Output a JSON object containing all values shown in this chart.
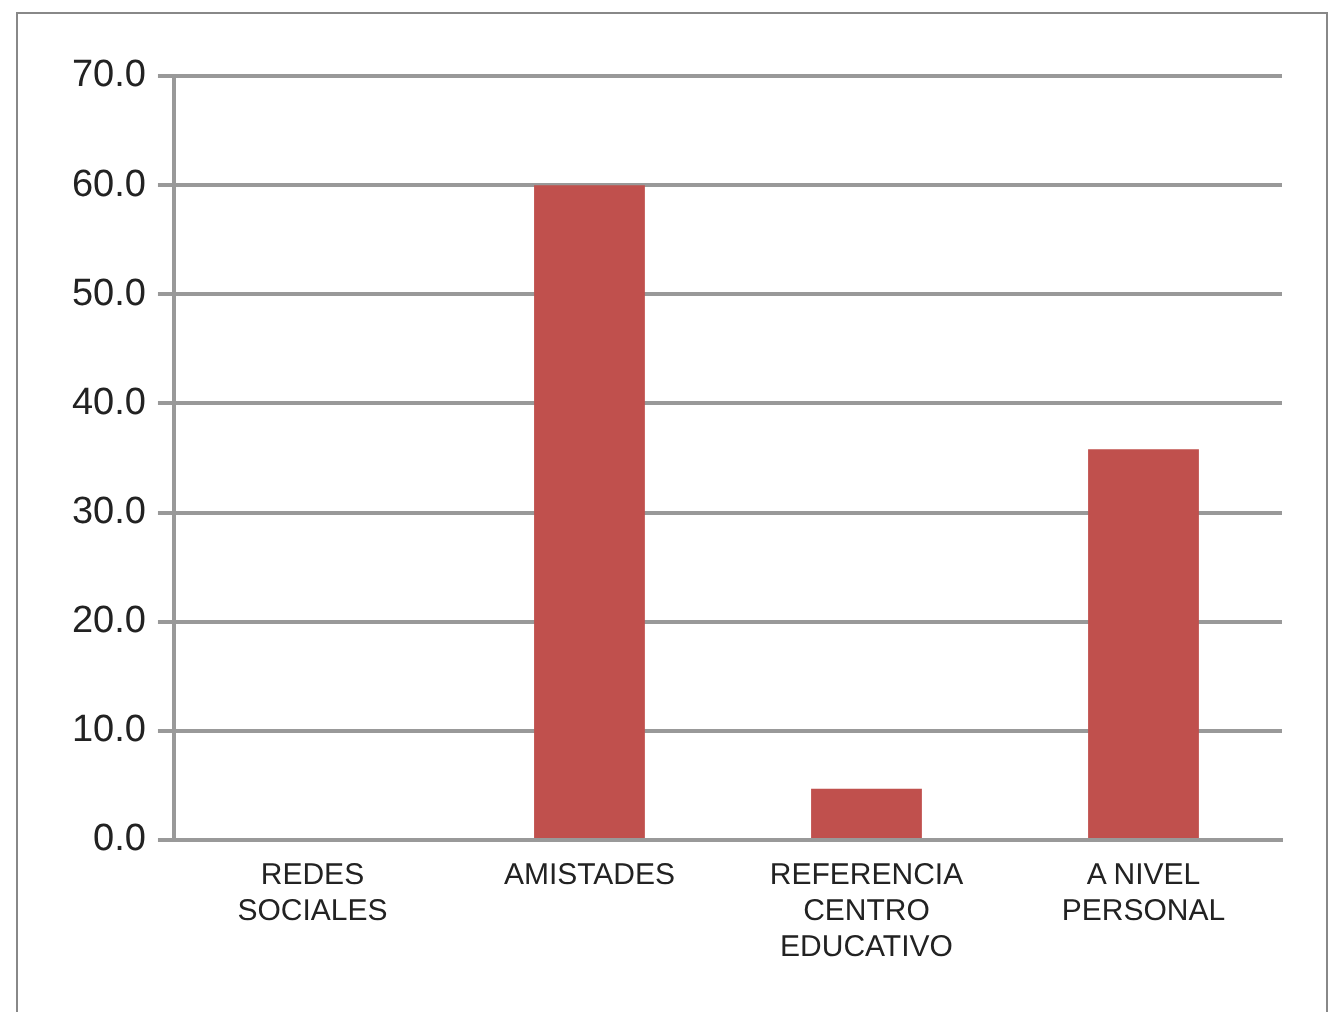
{
  "chart_data": {
    "type": "bar",
    "categories": [
      "REDES SOCIALES",
      "AMISTADES",
      "REFERENCIA CENTRO EDUCATIVO",
      "A NIVEL PERSONAL"
    ],
    "values": [
      0,
      60.0,
      4.7,
      35.8
    ],
    "color": "#c0504d",
    "ylim": [
      0,
      70
    ],
    "yticks": [
      {
        "value": 0,
        "label": "0.0"
      },
      {
        "value": 10,
        "label": "10.0"
      },
      {
        "value": 20,
        "label": "20.0"
      },
      {
        "value": 30,
        "label": "30.0"
      },
      {
        "value": 40,
        "label": "40.0"
      },
      {
        "value": 50,
        "label": "50.0"
      },
      {
        "value": 60,
        "label": "60.0"
      },
      {
        "value": 70,
        "label": "70.0"
      }
    ],
    "grid": "y",
    "legend": false
  }
}
